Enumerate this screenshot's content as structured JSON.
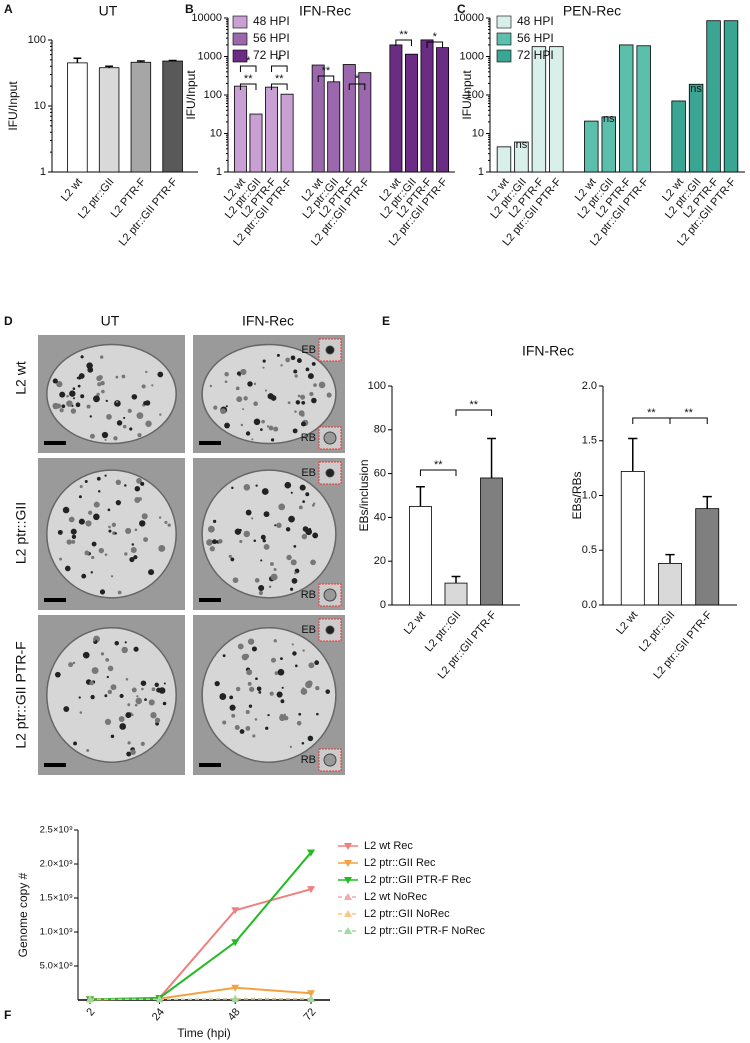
{
  "chart_data": [
    {
      "type": "bar",
      "panel": "A",
      "title": "UT",
      "ylabel": "IFU/Input",
      "log_scale": true,
      "categories": [
        "L2 wt",
        "L2 ptr::GII",
        "L2 PTR-F",
        "L2 ptr::GII PTR-F"
      ],
      "values": [
        45,
        38,
        46,
        48
      ],
      "errors": [
        8,
        2,
        2,
        1
      ],
      "colors": [
        "#ffffff",
        "#d9d9d9",
        "#a6a6a6",
        "#595959"
      ],
      "ylim": [
        1,
        100
      ],
      "yticks": [
        1,
        10,
        100
      ]
    },
    {
      "type": "bar",
      "panel": "B",
      "title": "IFN-Rec",
      "ylabel": "IFU/Input",
      "log_scale": true,
      "categories": [
        "L2 wt",
        "L2 ptr::GII",
        "L2 PTR-F",
        "L2 ptr::GII PTR-F"
      ],
      "series": [
        {
          "name": "48 HPI",
          "color": "#c9a0d3",
          "values": [
            170,
            32,
            160,
            105
          ]
        },
        {
          "name": "56 HPI",
          "color": "#9c68ad",
          "values": [
            600,
            220,
            620,
            380
          ]
        },
        {
          "name": "72 HPI",
          "color": "#6b2d84",
          "values": [
            2000,
            1150,
            2700,
            1700
          ]
        }
      ],
      "annotations": [
        "*",
        "**",
        "*",
        "**",
        "**",
        "*",
        "**",
        "*"
      ],
      "ylim": [
        1,
        10000
      ],
      "yticks": [
        1,
        10,
        100,
        1000,
        10000
      ]
    },
    {
      "type": "bar",
      "panel": "C",
      "title": "PEN-Rec",
      "ylabel": "IFU/Input",
      "log_scale": true,
      "categories": [
        "L2 wt",
        "L2 ptr::GII",
        "L2 PTR-F",
        "L2 ptr::GII PTR-F"
      ],
      "series": [
        {
          "name": "48 HPI",
          "color": "#d9efe9",
          "values": [
            4.5,
            6,
            1800,
            1800
          ]
        },
        {
          "name": "56 HPI",
          "color": "#5cbfac",
          "values": [
            21,
            27,
            2000,
            1900
          ]
        },
        {
          "name": "72 HPI",
          "color": "#3aa592",
          "values": [
            70,
            190,
            8500,
            8500
          ]
        }
      ],
      "annotations": [
        "ns",
        "ns",
        "ns"
      ],
      "ylim": [
        1,
        10000
      ],
      "yticks": [
        1,
        10,
        100,
        1000,
        10000
      ]
    },
    {
      "type": "bar",
      "panel": "E",
      "title": "IFN-Rec",
      "ylabel": "EBs/inclusion",
      "categories": [
        "L2 wt",
        "L2 ptr::GII",
        "L2 ptr::GII PTR-F"
      ],
      "values": [
        45,
        10,
        58
      ],
      "errors": [
        9,
        3,
        18
      ],
      "colors": [
        "#ffffff",
        "#d9d9d9",
        "#7f7f7f"
      ],
      "annotations": [
        "**",
        "**"
      ],
      "ylim": [
        0,
        100
      ],
      "yticks": [
        0,
        20,
        40,
        60,
        80,
        100
      ]
    },
    {
      "type": "bar",
      "ylabel": "EBs/RBs",
      "categories": [
        "L2 wt",
        "L2 ptr::GII",
        "L2 ptr::GII PTR-F"
      ],
      "values": [
        1.22,
        0.38,
        0.88
      ],
      "errors": [
        0.3,
        0.08,
        0.11
      ],
      "colors": [
        "#ffffff",
        "#d9d9d9",
        "#7f7f7f"
      ],
      "annotations": [
        "**",
        "**"
      ],
      "ylim": [
        0,
        2
      ],
      "yticks": [
        {
          "value": 0,
          "label": "0.0"
        },
        0.5,
        {
          "value": 1,
          "label": "1.0"
        },
        1.5,
        {
          "value": 2,
          "label": "2.0"
        }
      ]
    },
    {
      "type": "line",
      "panel": "F",
      "xlabel": "Time (hpi)",
      "ylabel": "Genome copy #",
      "x": [
        2,
        24,
        48,
        72
      ],
      "series": [
        {
          "name": "L2 wt Rec",
          "color": "#f08080",
          "marker": "down",
          "values": [
            10000000,
            30000000,
            1320000000,
            1630000000
          ]
        },
        {
          "name": "L2 ptr::GII Rec",
          "color": "#f5a142",
          "marker": "down",
          "values": [
            10000000,
            20000000,
            180000000,
            100000000
          ]
        },
        {
          "name": "L2 ptr::GII PTR-F Rec",
          "color": "#22bb22",
          "marker": "down",
          "values": [
            10000000,
            30000000,
            850000000,
            2170000000
          ]
        },
        {
          "name": "L2 wt NoRec",
          "color": "#f4aaaa",
          "marker": "up",
          "dashed": true,
          "values": [
            10000000,
            10000000,
            20000000,
            20000000
          ]
        },
        {
          "name": "L2 ptr::GII NoRec",
          "color": "#f8c88a",
          "marker": "up",
          "dashed": true,
          "values": [
            10000000,
            10000000,
            15000000,
            15000000
          ]
        },
        {
          "name": "L2 ptr::GII PTR-F NoRec",
          "color": "#9edc9e",
          "marker": "up",
          "dashed": true,
          "values": [
            10000000,
            10000000,
            12000000,
            12000000
          ]
        }
      ],
      "xlim": [
        2,
        72
      ],
      "xticks": [
        2,
        24,
        48,
        72
      ],
      "ylim": [
        0,
        2500000000
      ],
      "yticks": [
        {
          "value": 500000000,
          "label": "5.0×10⁸"
        },
        {
          "value": 1000000000,
          "label": "1.0×10⁹"
        },
        {
          "value": 1500000000,
          "label": "1.5×10⁹"
        },
        {
          "value": 2000000000,
          "label": "2.0×10⁹"
        },
        {
          "value": 2500000000,
          "label": "2.5×10⁹"
        }
      ]
    }
  ],
  "panel_d": {
    "panel": "D",
    "columns": [
      "UT",
      "IFN-Rec"
    ],
    "rows": [
      "L2 wt",
      "L2 ptr::GII",
      "L2 ptr::GII PTR-F"
    ],
    "insets": [
      "EB",
      "RB"
    ]
  }
}
